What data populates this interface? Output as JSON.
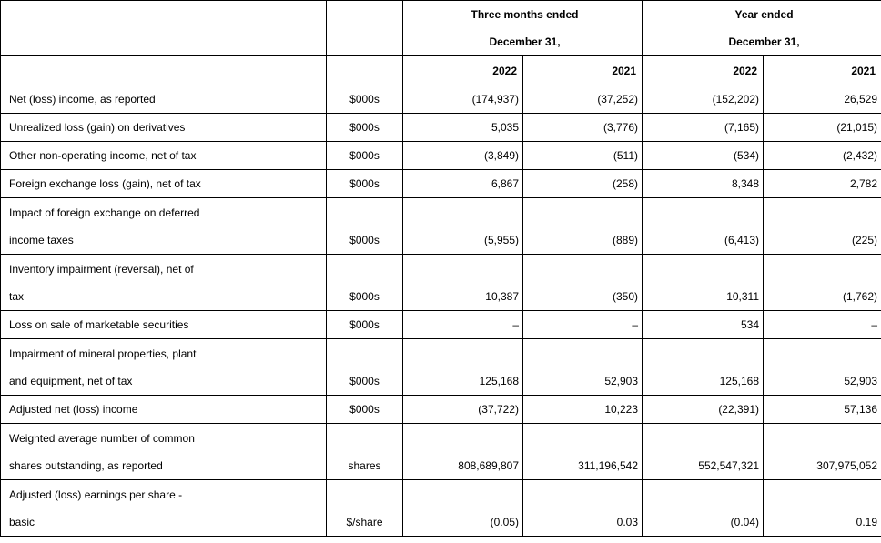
{
  "header": {
    "group1": [
      "Three months ended",
      "December 31,"
    ],
    "group2": [
      "Year ended",
      "December 31,"
    ],
    "years": [
      "2022",
      "2021",
      "2022",
      "2021"
    ]
  },
  "rows": [
    {
      "label": [
        "Net (loss) income, as reported"
      ],
      "unit": "$000s",
      "values": [
        "(174,937)",
        "(37,252)",
        "(152,202)",
        "26,529"
      ]
    },
    {
      "label": [
        "Unrealized loss (gain) on derivatives"
      ],
      "unit": "$000s",
      "values": [
        "5,035",
        "(3,776)",
        "(7,165)",
        "(21,015)"
      ]
    },
    {
      "label": [
        "Other non-operating income, net of tax"
      ],
      "unit": "$000s",
      "values": [
        "(3,849)",
        "(511)",
        "(534)",
        "(2,432)"
      ]
    },
    {
      "label": [
        "Foreign exchange loss (gain), net of tax"
      ],
      "unit": "$000s",
      "values": [
        "6,867",
        "(258)",
        "8,348",
        "2,782"
      ]
    },
    {
      "label": [
        "Impact of foreign exchange on deferred",
        "income taxes"
      ],
      "unit": "$000s",
      "values": [
        "(5,955)",
        "(889)",
        "(6,413)",
        "(225)"
      ]
    },
    {
      "label": [
        "Inventory impairment (reversal), net of",
        "tax"
      ],
      "unit": "$000s",
      "values": [
        "10,387",
        "(350)",
        "10,311",
        "(1,762)"
      ]
    },
    {
      "label": [
        "Loss on sale of marketable securities"
      ],
      "unit": "$000s",
      "values": [
        "–",
        "–",
        "534",
        "–"
      ]
    },
    {
      "label": [
        "Impairment of mineral properties, plant",
        "and equipment, net of tax"
      ],
      "unit": "$000s",
      "values": [
        "125,168",
        "52,903",
        "125,168",
        "52,903"
      ]
    },
    {
      "label": [
        "Adjusted net (loss) income"
      ],
      "unit": "$000s",
      "values": [
        "(37,722)",
        "10,223",
        "(22,391)",
        "57,136"
      ]
    },
    {
      "label": [
        "Weighted average number of common",
        "shares outstanding, as reported"
      ],
      "unit": "shares",
      "values": [
        "808,689,807",
        "311,196,542",
        "552,547,321",
        "307,975,052"
      ]
    },
    {
      "label": [
        "Adjusted (loss) earnings per share -",
        "basic"
      ],
      "unit": "$/share",
      "values": [
        "(0.05)",
        "0.03",
        "(0.04)",
        "0.19"
      ]
    }
  ]
}
